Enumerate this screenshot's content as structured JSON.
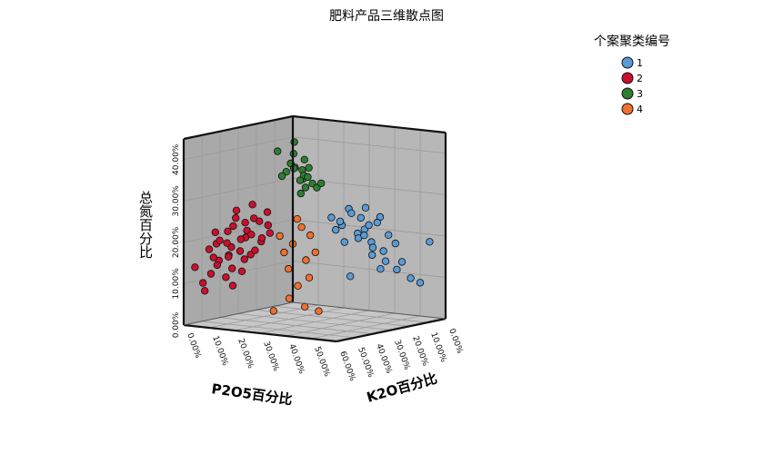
{
  "chart_data": {
    "type": "scatter",
    "subtype": "3d-scatter",
    "title": "肥料产品三维散点图",
    "xlabel": "P2O5百分比",
    "ylabel": "K2O百分比",
    "zlabel": "总氮百分比",
    "legend_title": "个案聚类编号",
    "legend_position": "top-right",
    "xlim": [
      0,
      60
    ],
    "ylim": [
      0,
      60
    ],
    "zlim": [
      0,
      45
    ],
    "x_ticks": [
      "0.00%",
      "10.00%",
      "20.00%",
      "30.00%",
      "40.00%",
      "50.00%",
      "60.00%"
    ],
    "y_ticks": [
      "0.00%",
      "10.00%",
      "20.00%",
      "30.00%",
      "40.00%",
      "50.00%"
    ],
    "z_ticks": [
      "0.00%",
      "10.00%",
      "20.00%",
      "30.00%",
      "40.00%"
    ],
    "grid": true,
    "series": [
      {
        "name": "1",
        "color": "#5b9bd5",
        "points": [
          [
            15,
            30,
            22
          ],
          [
            12,
            34,
            20
          ],
          [
            10,
            38,
            18
          ],
          [
            8,
            40,
            24
          ],
          [
            14,
            32,
            26
          ],
          [
            11,
            36,
            21
          ],
          [
            9,
            42,
            16
          ],
          [
            13,
            35,
            19
          ],
          [
            16,
            30,
            23
          ],
          [
            12,
            45,
            14
          ],
          [
            10,
            48,
            12
          ],
          [
            8,
            52,
            10
          ],
          [
            7,
            55,
            9
          ],
          [
            12,
            40,
            17
          ],
          [
            14,
            33,
            25
          ],
          [
            10,
            37,
            22
          ],
          [
            18,
            28,
            24
          ],
          [
            15,
            31,
            18
          ],
          [
            11,
            39,
            15
          ],
          [
            9,
            44,
            20
          ],
          [
            13,
            36,
            24
          ],
          [
            6,
            58,
            19
          ],
          [
            10,
            50,
            14
          ],
          [
            12,
            43,
            12
          ],
          [
            16,
            34,
            10
          ],
          [
            8,
            46,
            18
          ],
          [
            14,
            38,
            20
          ],
          [
            11,
            41,
            23
          ],
          [
            9,
            35,
            26
          ],
          [
            17,
            29,
            21
          ]
        ]
      },
      {
        "name": "2",
        "color": "#c8102e",
        "points": [
          [
            40,
            10,
            20
          ],
          [
            45,
            8,
            18
          ],
          [
            42,
            12,
            22
          ],
          [
            50,
            6,
            14
          ],
          [
            48,
            9,
            16
          ],
          [
            38,
            14,
            24
          ],
          [
            35,
            15,
            26
          ],
          [
            44,
            11,
            20
          ],
          [
            52,
            5,
            12
          ],
          [
            55,
            4,
            10
          ],
          [
            46,
            7,
            19
          ],
          [
            41,
            13,
            21
          ],
          [
            39,
            12,
            28
          ],
          [
            43,
            10,
            17
          ],
          [
            47,
            8,
            22
          ],
          [
            36,
            16,
            23
          ],
          [
            49,
            6,
            15
          ],
          [
            53,
            5,
            18
          ],
          [
            44,
            9,
            25
          ],
          [
            37,
            14,
            19
          ],
          [
            42,
            11,
            15
          ],
          [
            45,
            10,
            27
          ],
          [
            50,
            7,
            20
          ],
          [
            48,
            8,
            11
          ],
          [
            40,
            12,
            16
          ],
          [
            58,
            3,
            14
          ],
          [
            54,
            4,
            8
          ],
          [
            46,
            9,
            13
          ],
          [
            38,
            15,
            20
          ],
          [
            43,
            12,
            24
          ],
          [
            51,
            6,
            22
          ],
          [
            47,
            10,
            9
          ],
          [
            39,
            13,
            17
          ],
          [
            41,
            14,
            25
          ],
          [
            45,
            7,
            16
          ],
          [
            49,
            5,
            19
          ],
          [
            35,
            16,
            21
          ],
          [
            44,
            8,
            23
          ],
          [
            52,
            6,
            16
          ],
          [
            42,
            10,
            12
          ]
        ]
      },
      {
        "name": "3",
        "color": "#2e7d32",
        "points": [
          [
            22,
            20,
            34
          ],
          [
            24,
            18,
            36
          ],
          [
            20,
            22,
            32
          ],
          [
            26,
            16,
            35
          ],
          [
            23,
            21,
            38
          ],
          [
            21,
            19,
            33
          ],
          [
            25,
            17,
            37
          ],
          [
            19,
            23,
            31
          ],
          [
            27,
            15,
            34
          ],
          [
            22,
            22,
            36
          ],
          [
            24,
            20,
            33
          ],
          [
            20,
            18,
            35
          ],
          [
            28,
            14,
            40
          ],
          [
            18,
            24,
            32
          ],
          [
            23,
            17,
            42
          ],
          [
            25,
            21,
            30
          ],
          [
            21,
            20,
            31
          ],
          [
            26,
            19,
            36
          ],
          [
            22,
            16,
            39
          ],
          [
            24,
            23,
            34
          ]
        ]
      },
      {
        "name": "4",
        "color": "#f07030",
        "points": [
          [
            26,
            22,
            22
          ],
          [
            28,
            20,
            18
          ],
          [
            24,
            24,
            20
          ],
          [
            30,
            18,
            16
          ],
          [
            27,
            21,
            24
          ],
          [
            25,
            23,
            14
          ],
          [
            29,
            19,
            12
          ],
          [
            26,
            25,
            10
          ],
          [
            31,
            17,
            20
          ],
          [
            28,
            22,
            8
          ],
          [
            24,
            26,
            16
          ],
          [
            30,
            20,
            5
          ],
          [
            27,
            24,
            3
          ],
          [
            33,
            16,
            2
          ],
          [
            25,
            28,
            2
          ]
        ]
      }
    ]
  }
}
